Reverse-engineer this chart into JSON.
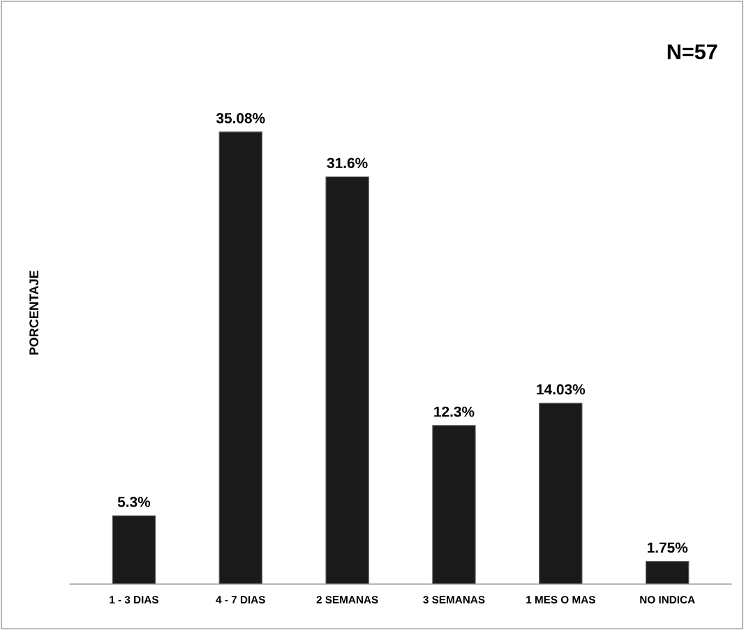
{
  "chart_data": {
    "type": "bar",
    "ylabel": "PORCENTAJE",
    "annotations": [
      "N=57"
    ],
    "categories": [
      "1 - 3 DIAS",
      "4 - 7 DIAS",
      "2 SEMANAS",
      "3 SEMANAS",
      "1 MES O MAS",
      "NO INDICA"
    ],
    "values": [
      5.3,
      35.08,
      31.6,
      12.3,
      14.03,
      1.75
    ],
    "value_labels": [
      "5.3%",
      "35.08%",
      "31.6%",
      "12.3%",
      "14.03%",
      "1.75%"
    ],
    "color": "#1a1a1a",
    "grid": false,
    "legend": false
  }
}
